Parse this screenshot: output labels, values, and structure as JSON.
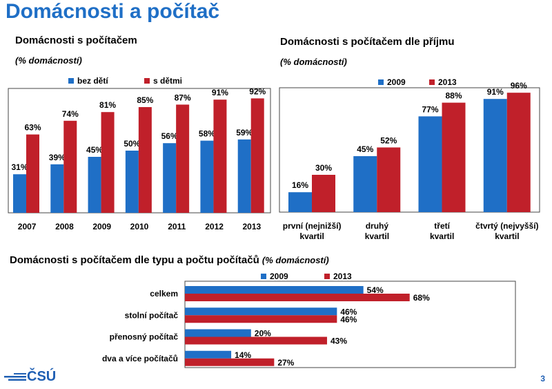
{
  "page": {
    "title": "Domácnosti a počítač",
    "number": "3",
    "logo_text": "ČSÚ"
  },
  "colors": {
    "title": "#1f6fc6",
    "blue": "#1f6fc6",
    "red": "#c0202a"
  },
  "chart_data": [
    {
      "type": "bar",
      "title": "Domácnosti s počítačem",
      "subtitle": "(% domácností)",
      "categories": [
        "2007",
        "2008",
        "2009",
        "2010",
        "2011",
        "2012",
        "2013"
      ],
      "series": [
        {
          "name": "bez dětí",
          "values": [
            31,
            39,
            45,
            50,
            56,
            58,
            59
          ]
        },
        {
          "name": "s dětmi",
          "values": [
            63,
            74,
            81,
            85,
            87,
            91,
            92
          ]
        }
      ],
      "ylim": [
        0,
        100
      ],
      "legend": "top",
      "unit": "%"
    },
    {
      "type": "bar",
      "title": "Domácnosti s počítačem dle příjmu",
      "subtitle": "(% domácností)",
      "categories": [
        [
          "první (nejnižší)",
          "kvartil"
        ],
        [
          "druhý",
          "kvartil"
        ],
        [
          "třetí",
          "kvartil"
        ],
        [
          "čtvrtý (nejvyšší)",
          "kvartil"
        ]
      ],
      "series": [
        {
          "name": "2009",
          "values": [
            16,
            45,
            77,
            91
          ]
        },
        {
          "name": "2013",
          "values": [
            30,
            52,
            88,
            96
          ]
        }
      ],
      "ylim": [
        0,
        100
      ],
      "legend": "top",
      "unit": "%"
    },
    {
      "type": "bar",
      "orientation": "horizontal",
      "title": "Domácnosti s počítačem dle typu a počtu počítačů",
      "subtitle": "(% domácností)",
      "categories": [
        "celkem",
        "stolní počítač",
        "přenosný počítač",
        "dva a více počítačů"
      ],
      "series": [
        {
          "name": "2009",
          "values": [
            54,
            46,
            20,
            14
          ]
        },
        {
          "name": "2013",
          "values": [
            68,
            46,
            43,
            27
          ]
        }
      ],
      "xlim": [
        0,
        100
      ],
      "legend": "top",
      "unit": "%"
    }
  ]
}
